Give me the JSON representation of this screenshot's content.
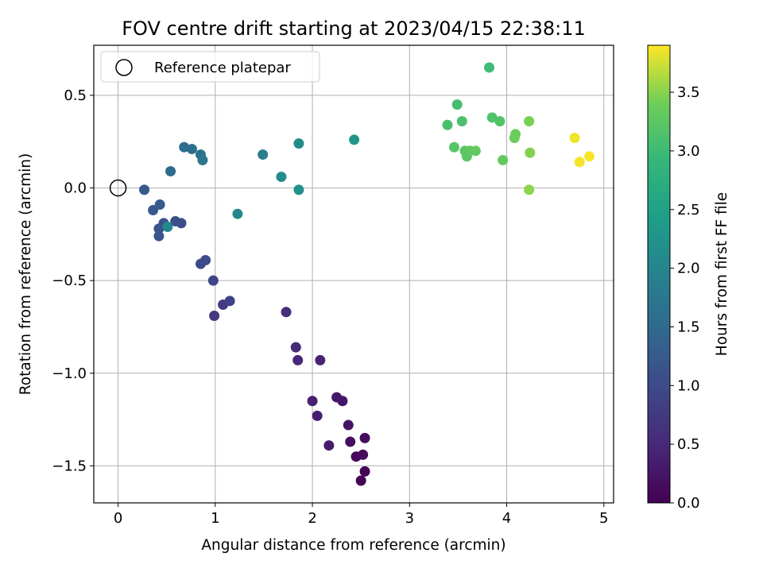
{
  "chart_data": {
    "type": "scatter",
    "title": "FOV centre drift starting at 2023/04/15 22:38:11",
    "xlabel": "Angular distance from reference (arcmin)",
    "ylabel": "Rotation from reference (arcmin)",
    "xlim": [
      -0.25,
      5.1
    ],
    "ylim": [
      -1.7,
      0.77
    ],
    "xticks": [
      0,
      1,
      2,
      3,
      4,
      5
    ],
    "xtick_labels": [
      "0",
      "1",
      "2",
      "3",
      "4",
      "5"
    ],
    "yticks": [
      -1.5,
      -1.0,
      -0.5,
      0.0,
      0.5
    ],
    "ytick_labels": [
      "−1.5",
      "−1.0",
      "−0.5",
      "0.0",
      "0.5"
    ],
    "grid": true,
    "legend": {
      "label": "Reference platepar",
      "placement": "top-left"
    },
    "reference_point": {
      "x": 0,
      "y": 0
    },
    "colorbar": {
      "label": "Hours from first FF file",
      "colormap": "viridis",
      "range": [
        0.0,
        3.9
      ],
      "ticks": [
        0.0,
        0.5,
        1.0,
        1.5,
        2.0,
        2.5,
        3.0,
        3.5
      ],
      "tick_labels": [
        "0.0",
        "0.5",
        "1.0",
        "1.5",
        "2.0",
        "2.5",
        "3.0",
        "3.5"
      ]
    },
    "points": [
      {
        "x": 2.5,
        "y": -1.58,
        "t": 0.02
      },
      {
        "x": 2.54,
        "y": -1.53,
        "t": 0.05
      },
      {
        "x": 2.45,
        "y": -1.45,
        "t": 0.08
      },
      {
        "x": 2.52,
        "y": -1.44,
        "t": 0.11
      },
      {
        "x": 2.54,
        "y": -1.35,
        "t": 0.15
      },
      {
        "x": 2.39,
        "y": -1.37,
        "t": 0.18
      },
      {
        "x": 2.37,
        "y": -1.28,
        "t": 0.22
      },
      {
        "x": 2.31,
        "y": -1.15,
        "t": 0.26
      },
      {
        "x": 2.25,
        "y": -1.13,
        "t": 0.29
      },
      {
        "x": 2.17,
        "y": -1.39,
        "t": 0.32
      },
      {
        "x": 2.05,
        "y": -1.23,
        "t": 0.36
      },
      {
        "x": 2.0,
        "y": -1.15,
        "t": 0.4
      },
      {
        "x": 2.08,
        "y": -0.93,
        "t": 0.44
      },
      {
        "x": 1.85,
        "y": -0.93,
        "t": 0.48
      },
      {
        "x": 1.83,
        "y": -0.86,
        "t": 0.52
      },
      {
        "x": 1.73,
        "y": -0.67,
        "t": 0.58
      },
      {
        "x": 0.99,
        "y": -0.69,
        "t": 0.75
      },
      {
        "x": 1.08,
        "y": -0.63,
        "t": 0.8
      },
      {
        "x": 1.15,
        "y": -0.61,
        "t": 0.85
      },
      {
        "x": 0.98,
        "y": -0.5,
        "t": 0.92
      },
      {
        "x": 0.85,
        "y": -0.41,
        "t": 0.97
      },
      {
        "x": 0.9,
        "y": -0.39,
        "t": 1.0
      },
      {
        "x": 0.65,
        "y": -0.19,
        "t": 1.05
      },
      {
        "x": 0.59,
        "y": -0.18,
        "t": 1.08
      },
      {
        "x": 0.47,
        "y": -0.19,
        "t": 1.12
      },
      {
        "x": 0.42,
        "y": -0.22,
        "t": 1.15
      },
      {
        "x": 0.42,
        "y": -0.26,
        "t": 1.18
      },
      {
        "x": 0.51,
        "y": -0.21,
        "t": 2.05
      },
      {
        "x": 0.36,
        "y": -0.12,
        "t": 1.2
      },
      {
        "x": 0.43,
        "y": -0.09,
        "t": 1.22
      },
      {
        "x": 0.27,
        "y": -0.01,
        "t": 1.25
      },
      {
        "x": 0.54,
        "y": 0.09,
        "t": 1.5
      },
      {
        "x": 0.68,
        "y": 0.22,
        "t": 1.55
      },
      {
        "x": 0.76,
        "y": 0.21,
        "t": 1.6
      },
      {
        "x": 0.85,
        "y": 0.18,
        "t": 1.65
      },
      {
        "x": 0.87,
        "y": 0.15,
        "t": 1.7
      },
      {
        "x": 1.49,
        "y": 0.18,
        "t": 1.85
      },
      {
        "x": 1.23,
        "y": -0.14,
        "t": 2.05
      },
      {
        "x": 1.68,
        "y": 0.06,
        "t": 2.1
      },
      {
        "x": 1.86,
        "y": 0.24,
        "t": 2.15
      },
      {
        "x": 1.86,
        "y": -0.01,
        "t": 2.2
      },
      {
        "x": 2.43,
        "y": 0.26,
        "t": 2.3
      },
      {
        "x": 3.82,
        "y": 0.65,
        "t": 3.0
      },
      {
        "x": 3.49,
        "y": 0.45,
        "t": 3.05
      },
      {
        "x": 3.39,
        "y": 0.34,
        "t": 3.1
      },
      {
        "x": 3.54,
        "y": 0.36,
        "t": 3.12
      },
      {
        "x": 3.85,
        "y": 0.38,
        "t": 3.15
      },
      {
        "x": 3.93,
        "y": 0.36,
        "t": 3.18
      },
      {
        "x": 3.46,
        "y": 0.22,
        "t": 3.2
      },
      {
        "x": 3.57,
        "y": 0.2,
        "t": 3.22
      },
      {
        "x": 3.59,
        "y": 0.17,
        "t": 3.25
      },
      {
        "x": 3.62,
        "y": 0.2,
        "t": 3.28
      },
      {
        "x": 3.68,
        "y": 0.2,
        "t": 3.3
      },
      {
        "x": 3.96,
        "y": 0.15,
        "t": 3.33
      },
      {
        "x": 4.09,
        "y": 0.29,
        "t": 3.38
      },
      {
        "x": 4.08,
        "y": 0.27,
        "t": 3.4
      },
      {
        "x": 4.23,
        "y": 0.36,
        "t": 3.45
      },
      {
        "x": 4.24,
        "y": 0.19,
        "t": 3.48
      },
      {
        "x": 4.23,
        "y": -0.01,
        "t": 3.52
      },
      {
        "x": 4.7,
        "y": 0.27,
        "t": 3.85
      },
      {
        "x": 4.75,
        "y": 0.14,
        "t": 3.87
      },
      {
        "x": 4.85,
        "y": 0.17,
        "t": 3.88
      }
    ]
  }
}
